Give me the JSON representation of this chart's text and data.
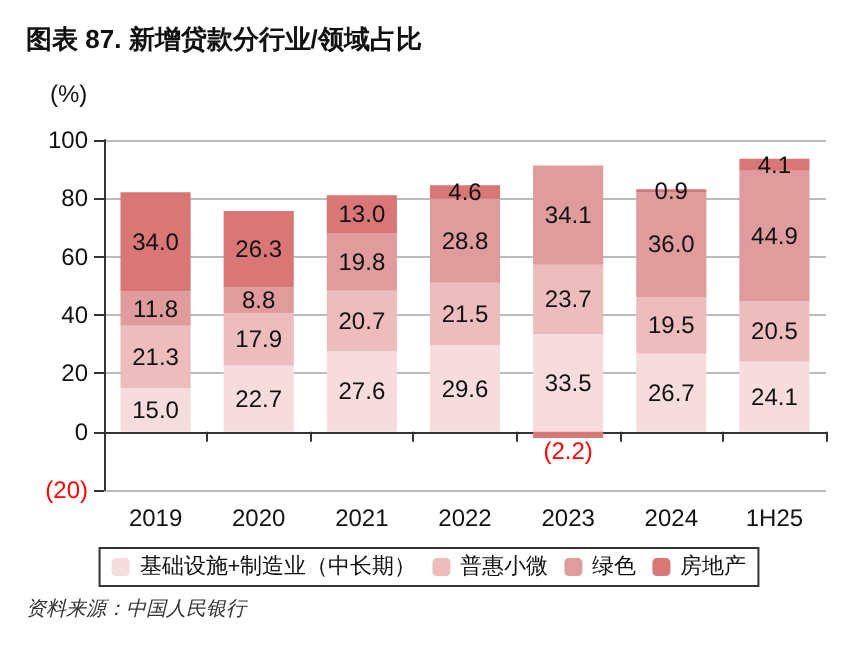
{
  "chart_data": {
    "type": "bar",
    "title": "图表 87. 新增贷款分行业/领域占比",
    "ylabel": "(%)",
    "stacked": true,
    "categories": [
      "2019",
      "2020",
      "2021",
      "2022",
      "2023",
      "2024",
      "1H25"
    ],
    "series": [
      {
        "name": "基础设施+制造业（中长期）",
        "color": "#f6dcdc",
        "values": [
          15.0,
          22.7,
          27.6,
          29.6,
          33.5,
          26.7,
          24.1
        ],
        "value_labels": [
          "15.0",
          "22.7",
          "27.6",
          "29.6",
          "33.5",
          "26.7",
          "24.1"
        ]
      },
      {
        "name": "普惠小微",
        "color": "#edbcbc",
        "values": [
          21.3,
          17.9,
          20.7,
          21.5,
          23.7,
          19.5,
          20.5
        ],
        "value_labels": [
          "21.3",
          "17.9",
          "20.7",
          "21.5",
          "23.7",
          "19.5",
          "20.5"
        ]
      },
      {
        "name": "绿色",
        "color": "#e09c9c",
        "values": [
          11.8,
          8.8,
          19.8,
          28.8,
          34.1,
          36.0,
          44.9
        ],
        "value_labels": [
          "11.8",
          "8.8",
          "19.8",
          "28.8",
          "34.1",
          "36.0",
          "44.9"
        ]
      },
      {
        "name": "房地产",
        "color": "#d97676",
        "values": [
          34.0,
          26.3,
          13.0,
          4.6,
          -2.2,
          0.9,
          4.1
        ],
        "value_labels": [
          "34.0",
          "26.3",
          "13.0",
          "4.6",
          "(2.2)",
          "0.9",
          "4.1"
        ]
      }
    ],
    "ylim": [
      -20,
      100
    ],
    "yticks": [
      {
        "value": -20,
        "label": "(20)"
      },
      0,
      20,
      40,
      60,
      80,
      100
    ],
    "grid": "y",
    "legend": "bottom",
    "annotations": [
      "资料来源：中国人民银行"
    ]
  }
}
